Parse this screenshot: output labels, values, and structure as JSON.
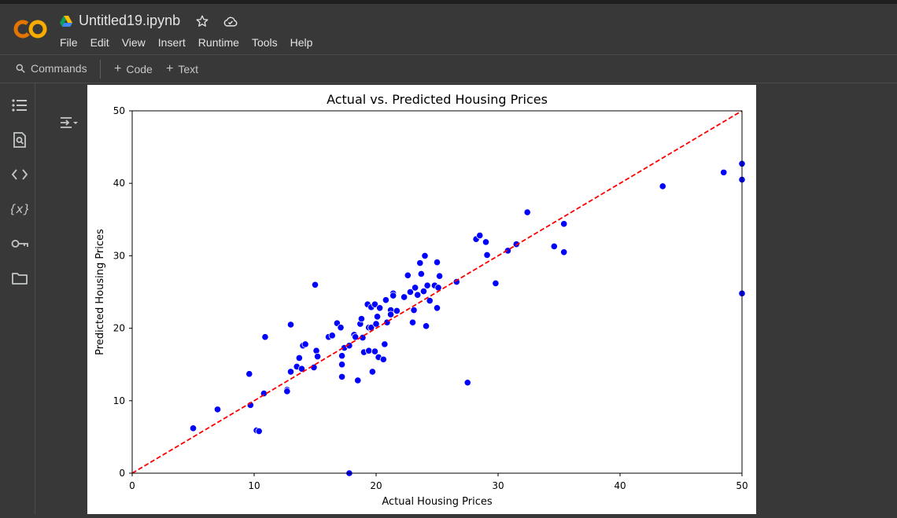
{
  "app": {
    "notebook_title": "Untitled19.ipynb",
    "accent_orange": "#f9ab00",
    "accent_orange_dark": "#e37400"
  },
  "menu": [
    "File",
    "Edit",
    "View",
    "Insert",
    "Runtime",
    "Tools",
    "Help"
  ],
  "toolbar": {
    "commands_label": "Commands",
    "code_label": "Code",
    "text_label": "Text"
  },
  "sidebar_icons": [
    "table-of-contents-icon",
    "find-icon",
    "code-snippets-icon",
    "variables-icon",
    "secrets-key-icon",
    "folder-icon"
  ],
  "chart_data": {
    "type": "scatter",
    "title": "Actual vs. Predicted Housing Prices",
    "xlabel": "Actual Housing Prices",
    "ylabel": "Predicted Housing Prices",
    "xlim": [
      0,
      50
    ],
    "ylim": [
      0,
      50
    ],
    "xticks": [
      0,
      10,
      20,
      30,
      40,
      50
    ],
    "yticks": [
      0,
      10,
      20,
      30,
      40,
      50
    ],
    "point_color": "#0000ff",
    "reference_line": {
      "from": [
        0,
        0
      ],
      "to": [
        50,
        50
      ],
      "color": "#ff0000",
      "style": "dashed"
    },
    "points": [
      [
        5.0,
        6.2
      ],
      [
        7.0,
        8.8
      ],
      [
        9.6,
        13.7
      ],
      [
        9.7,
        9.4
      ],
      [
        10.2,
        5.9
      ],
      [
        10.4,
        5.8
      ],
      [
        10.8,
        11.0
      ],
      [
        10.9,
        18.8
      ],
      [
        12.7,
        11.5
      ],
      [
        12.7,
        11.3
      ],
      [
        13.0,
        14.0
      ],
      [
        13.0,
        20.5
      ],
      [
        13.5,
        14.7
      ],
      [
        13.7,
        15.9
      ],
      [
        13.9,
        14.4
      ],
      [
        14.0,
        17.6
      ],
      [
        14.2,
        17.8
      ],
      [
        14.9,
        14.6
      ],
      [
        15.0,
        26.0
      ],
      [
        15.1,
        16.9
      ],
      [
        15.2,
        16.1
      ],
      [
        16.1,
        18.8
      ],
      [
        16.4,
        19.0
      ],
      [
        16.8,
        20.7
      ],
      [
        17.1,
        20.1
      ],
      [
        17.2,
        16.2
      ],
      [
        17.2,
        15.0
      ],
      [
        17.2,
        13.3
      ],
      [
        17.4,
        17.3
      ],
      [
        17.8,
        17.6
      ],
      [
        17.8,
        0.0
      ],
      [
        18.2,
        19.1
      ],
      [
        18.3,
        18.8
      ],
      [
        18.5,
        12.8
      ],
      [
        18.7,
        20.6
      ],
      [
        18.8,
        21.3
      ],
      [
        18.9,
        18.7
      ],
      [
        19.0,
        16.7
      ],
      [
        19.3,
        23.3
      ],
      [
        19.4,
        16.9
      ],
      [
        19.4,
        20.1
      ],
      [
        19.6,
        20.1
      ],
      [
        19.6,
        22.9
      ],
      [
        19.7,
        14.0
      ],
      [
        19.9,
        23.3
      ],
      [
        19.9,
        16.8
      ],
      [
        20.0,
        20.6
      ],
      [
        20.1,
        21.6
      ],
      [
        20.2,
        16.0
      ],
      [
        20.3,
        22.8
      ],
      [
        20.6,
        15.7
      ],
      [
        20.7,
        17.8
      ],
      [
        20.8,
        23.9
      ],
      [
        20.9,
        20.8
      ],
      [
        21.2,
        22.5
      ],
      [
        21.2,
        21.9
      ],
      [
        21.4,
        24.8
      ],
      [
        21.4,
        24.5
      ],
      [
        21.7,
        22.4
      ],
      [
        22.3,
        24.3
      ],
      [
        22.6,
        27.3
      ],
      [
        22.8,
        25.0
      ],
      [
        23.0,
        20.8
      ],
      [
        23.1,
        22.5
      ],
      [
        23.2,
        25.6
      ],
      [
        23.4,
        24.6
      ],
      [
        23.6,
        29.0
      ],
      [
        23.7,
        27.5
      ],
      [
        23.9,
        25.1
      ],
      [
        24.0,
        30.0
      ],
      [
        24.1,
        20.3
      ],
      [
        24.2,
        25.9
      ],
      [
        24.4,
        23.8
      ],
      [
        24.8,
        25.9
      ],
      [
        25.0,
        29.1
      ],
      [
        25.0,
        22.8
      ],
      [
        25.1,
        25.6
      ],
      [
        25.2,
        27.2
      ],
      [
        26.6,
        26.4
      ],
      [
        27.5,
        12.5
      ],
      [
        28.2,
        32.3
      ],
      [
        28.5,
        32.8
      ],
      [
        29.0,
        31.9
      ],
      [
        29.1,
        30.1
      ],
      [
        29.8,
        26.2
      ],
      [
        30.8,
        30.7
      ],
      [
        31.5,
        31.6
      ],
      [
        32.4,
        36.0
      ],
      [
        34.6,
        31.3
      ],
      [
        35.4,
        34.4
      ],
      [
        35.4,
        30.5
      ],
      [
        43.5,
        39.6
      ],
      [
        48.5,
        41.5
      ],
      [
        50.0,
        42.7
      ],
      [
        50.0,
        40.5
      ],
      [
        50.0,
        24.8
      ]
    ]
  }
}
